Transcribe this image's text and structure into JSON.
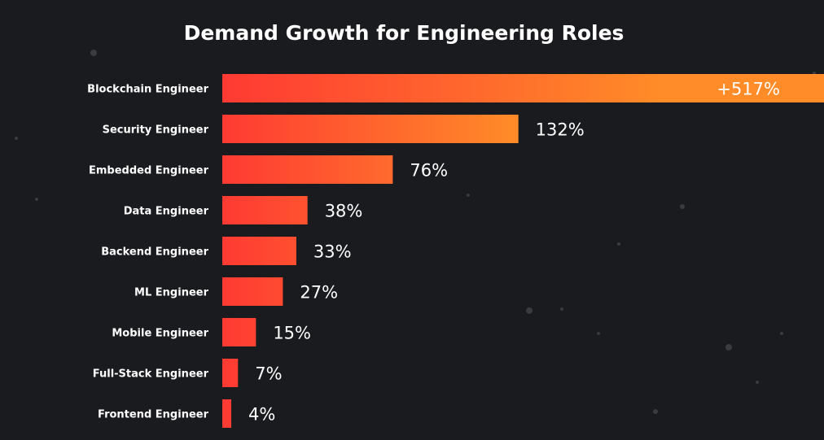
{
  "chart_data": {
    "type": "bar",
    "orientation": "horizontal",
    "title": "Demand Growth for Engineering Roles",
    "xlabel": "",
    "ylabel": "",
    "categories": [
      "Blockchain Engineer",
      "Security Engineer",
      "Embedded Engineer",
      "Data Engineer",
      "Backend Engineer",
      "ML Engineer",
      "Mobile Engineer",
      "Full-Stack Engineer",
      "Frontend Engineer"
    ],
    "values": [
      517,
      132,
      76,
      38,
      33,
      27,
      15,
      7,
      4
    ],
    "value_labels": [
      "+517%",
      "132%",
      "76%",
      "38%",
      "33%",
      "27%",
      "15%",
      "7%",
      "4%"
    ],
    "grid": false,
    "colors": {
      "start": "#ff3a33",
      "end": "#ff8c28",
      "background": "#1a1b1f"
    }
  }
}
